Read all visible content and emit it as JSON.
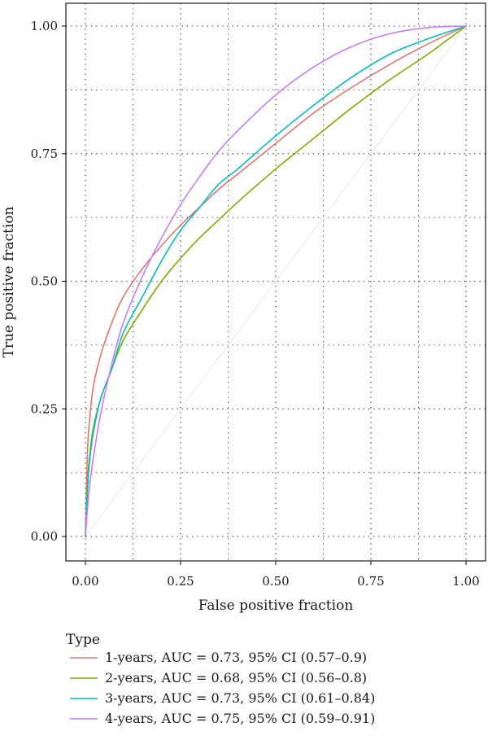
{
  "chart_data": {
    "type": "line",
    "title": "",
    "xlabel": "False positive fraction",
    "ylabel": "True positive fraction",
    "xlim": [
      0,
      1
    ],
    "ylim": [
      0,
      1
    ],
    "x_ticks": [
      0,
      0.25,
      0.5,
      0.75,
      1
    ],
    "y_ticks": [
      0,
      0.25,
      0.5,
      0.75,
      1
    ],
    "x_tick_labels": [
      "0.00",
      "0.25",
      "0.50",
      "0.75",
      "1.00"
    ],
    "y_tick_labels": [
      "0.00",
      "0.25",
      "0.50",
      "0.75",
      "1.00"
    ],
    "grid": true,
    "grid_style": "dotted",
    "diagonal_reference": true,
    "legend": {
      "title": "Type",
      "placement": "bottom"
    },
    "series": [
      {
        "name": "1-years, AUC = 0.73, 95% CI (0.57–0.9)",
        "color": "#e8736c",
        "x": [
          0,
          0.005,
          0.01,
          0.02,
          0.04,
          0.07,
          0.1,
          0.15,
          0.2,
          0.25,
          0.3,
          0.35,
          0.4,
          0.5,
          0.6,
          0.7,
          0.8,
          0.9,
          1
        ],
        "y": [
          0,
          0.16,
          0.22,
          0.29,
          0.355,
          0.42,
          0.47,
          0.525,
          0.57,
          0.61,
          0.645,
          0.68,
          0.71,
          0.77,
          0.83,
          0.88,
          0.925,
          0.965,
          1
        ]
      },
      {
        "name": "2-years, AUC = 0.68, 95% CI (0.56–0.8)",
        "color": "#7cae00",
        "x": [
          0,
          0.005,
          0.01,
          0.02,
          0.04,
          0.07,
          0.1,
          0.15,
          0.2,
          0.25,
          0.3,
          0.35,
          0.4,
          0.5,
          0.6,
          0.7,
          0.8,
          0.9,
          1
        ],
        "y": [
          0,
          0.1,
          0.15,
          0.21,
          0.27,
          0.33,
          0.385,
          0.445,
          0.5,
          0.545,
          0.585,
          0.62,
          0.655,
          0.72,
          0.78,
          0.84,
          0.895,
          0.945,
          1
        ]
      },
      {
        "name": "3-years, AUC = 0.73, 95% CI (0.61–0.84)",
        "color": "#00bfc4",
        "x": [
          0,
          0.005,
          0.01,
          0.02,
          0.04,
          0.07,
          0.1,
          0.15,
          0.2,
          0.25,
          0.3,
          0.35,
          0.4,
          0.5,
          0.6,
          0.7,
          0.8,
          0.9,
          1
        ],
        "y": [
          0,
          0.08,
          0.14,
          0.2,
          0.27,
          0.33,
          0.4,
          0.47,
          0.54,
          0.6,
          0.645,
          0.69,
          0.72,
          0.785,
          0.845,
          0.9,
          0.945,
          0.975,
          1
        ]
      },
      {
        "name": "4-years, AUC = 0.75, 95% CI (0.59–0.91)",
        "color": "#c77cff",
        "x": [
          0,
          0.005,
          0.01,
          0.02,
          0.04,
          0.07,
          0.1,
          0.15,
          0.2,
          0.25,
          0.3,
          0.35,
          0.4,
          0.5,
          0.6,
          0.7,
          0.8,
          0.9,
          1
        ],
        "y": [
          0,
          0.05,
          0.09,
          0.15,
          0.24,
          0.34,
          0.42,
          0.51,
          0.585,
          0.65,
          0.705,
          0.755,
          0.795,
          0.865,
          0.92,
          0.96,
          0.985,
          0.997,
          1
        ]
      }
    ]
  }
}
